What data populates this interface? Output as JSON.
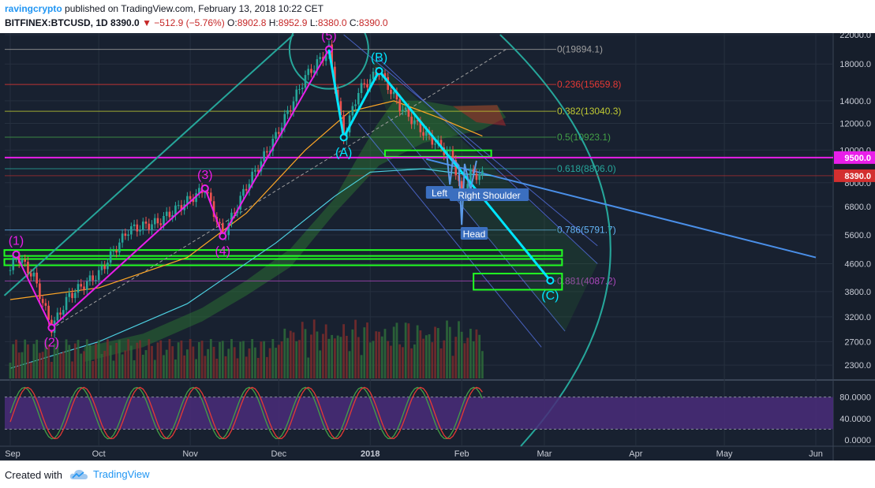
{
  "header": {
    "author": "ravingcrypto",
    "published_text": "published on TradingView.com, February 13, 2018 10:22 CET",
    "symbol": "BITFINEX:BTCUSD, 1D",
    "last": "8390.0",
    "change": "−512.9 (−5.76%)",
    "o_label": "O:",
    "o_value": "8902.8",
    "h_label": "H:",
    "h_value": "8952.9",
    "l_label": "L:",
    "l_value": "8380.0",
    "c_label": "C:",
    "c_value": "8390.0",
    "down_arrow": "▼"
  },
  "footer": {
    "created_with": "Created with",
    "brand": "TradingView"
  },
  "chart_data": {
    "type": "candlestick",
    "symbol": "BITFINEX:BTCUSD",
    "interval": "1D",
    "price_scale": "log",
    "ylim": [
      2100,
      22000
    ],
    "y_ticks": [
      "22000.0",
      "18000.0",
      "14000.0",
      "12000.0",
      "10000.0",
      "8000.0",
      "6800.0",
      "5600.0",
      "4600.0",
      "3800.0",
      "3200.0",
      "2700.0",
      "2300.0"
    ],
    "y_tick_values": [
      22000,
      18000,
      14000,
      12000,
      10000,
      8000,
      6800,
      5600,
      4600,
      3800,
      3200,
      2700,
      2300
    ],
    "x_ticks": [
      "Sep",
      "Oct",
      "Nov",
      "Dec",
      "2018",
      "Feb",
      "Mar",
      "Apr",
      "May",
      "Jun"
    ],
    "x_tick_days": [
      0,
      30,
      61,
      91,
      122,
      153,
      181,
      212,
      242,
      273
    ],
    "price_labels": [
      {
        "text": "9500.0",
        "value": 9500,
        "color": "#e91ee9"
      },
      {
        "text": "8390.0",
        "value": 8390,
        "color": "#d32f2f"
      }
    ],
    "fib_levels": [
      {
        "label": "0(19894.1)",
        "value": 19894.1,
        "color": "#9e9e9e"
      },
      {
        "label": "0.236(15659.8)",
        "value": 15659.8,
        "color": "#e53935"
      },
      {
        "label": "0.382(13040.3)",
        "value": 13040.3,
        "color": "#c0ca33"
      },
      {
        "label": "0.5(10923.1)",
        "value": 10923.1,
        "color": "#43a047"
      },
      {
        "label": "0.618(8806.0)",
        "value": 8806.0,
        "color": "#26a69a"
      },
      {
        "label": "0.786(5791.7)",
        "value": 5791.7,
        "color": "#64b5f6"
      },
      {
        "label": "0.881(4087.2)",
        "value": 4087.2,
        "color": "#ab47bc"
      }
    ],
    "elliott_waves": [
      {
        "label": "(1)",
        "day": 2,
        "value": 4900
      },
      {
        "label": "(2)",
        "day": 14,
        "value": 2970
      },
      {
        "label": "(3)",
        "day": 66,
        "value": 7700
      },
      {
        "label": "(4)",
        "day": 72,
        "value": 5550
      },
      {
        "label": "(5)",
        "day": 108,
        "value": 19894
      }
    ],
    "corrective_waves": [
      {
        "label": "(5)",
        "day": 108,
        "value": 19894
      },
      {
        "label": "(A)",
        "day": 113,
        "value": 10900
      },
      {
        "label": "(B)",
        "day": 125,
        "value": 17170
      },
      {
        "label": "(C)",
        "day": 183,
        "value": 4100
      }
    ],
    "pattern_labels": [
      "Left",
      "Right Shoulder",
      "Head"
    ],
    "oscillator": {
      "y_ticks": [
        "80.0000",
        "40.0000",
        "0.0000"
      ],
      "y_tick_values": [
        80,
        40,
        0
      ],
      "bands": [
        20,
        80
      ]
    },
    "colors": {
      "background": "#182130",
      "grid": "#26303f",
      "bull": "#26a69a",
      "bear": "#ef5350",
      "wave_impulse": "#e91ee9",
      "wave_corrective": "#00e5ff",
      "support_box": "#22ff22",
      "trendline": "#4a8fe8",
      "osc_band": "#4a2c7a"
    }
  }
}
